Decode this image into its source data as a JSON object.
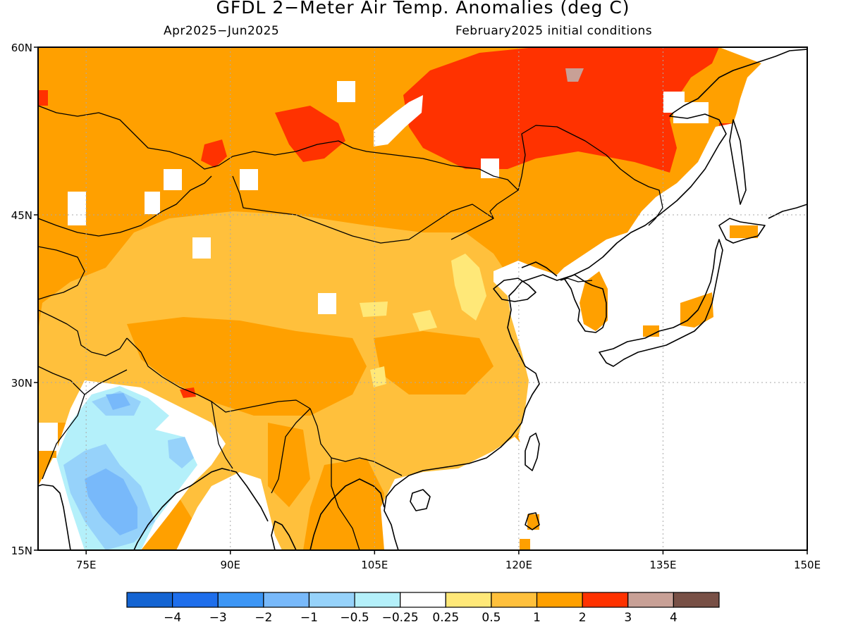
{
  "header": {
    "title": "GFDL 2−Meter Air Temp. Anomalies (deg C)",
    "period": "Apr2025−Jun2025",
    "init": "February2025 initial conditions"
  },
  "map": {
    "lon_range": [
      70,
      150
    ],
    "lat_range": [
      15,
      60
    ],
    "lat_ticks": [
      {
        "value": 60,
        "label": "60N"
      },
      {
        "value": 45,
        "label": "45N"
      },
      {
        "value": 30,
        "label": "30N"
      },
      {
        "value": 15,
        "label": "15N"
      }
    ],
    "lon_ticks": [
      {
        "value": 75,
        "label": "75E"
      },
      {
        "value": 90,
        "label": "90E"
      },
      {
        "value": 105,
        "label": "105E"
      },
      {
        "value": 120,
        "label": "120E"
      },
      {
        "value": 135,
        "label": "135E"
      },
      {
        "value": 150,
        "label": "150E"
      }
    ],
    "base_color": "#ffa000"
  },
  "legend": {
    "colors": [
      "#1464d2",
      "#1e6eeb",
      "#3c96f5",
      "#78b9fa",
      "#96d2fa",
      "#b4f0fa",
      "#ffffff",
      "#ffe878",
      "#ffc03c",
      "#ffa000",
      "#ff3200",
      "#c8a096",
      "#785046"
    ],
    "labels": [
      "−4",
      "−3",
      "−2",
      "−1",
      "−0.5",
      "−0.25",
      "0.25",
      "0.5",
      "1",
      "2",
      "3",
      "4"
    ]
  }
}
